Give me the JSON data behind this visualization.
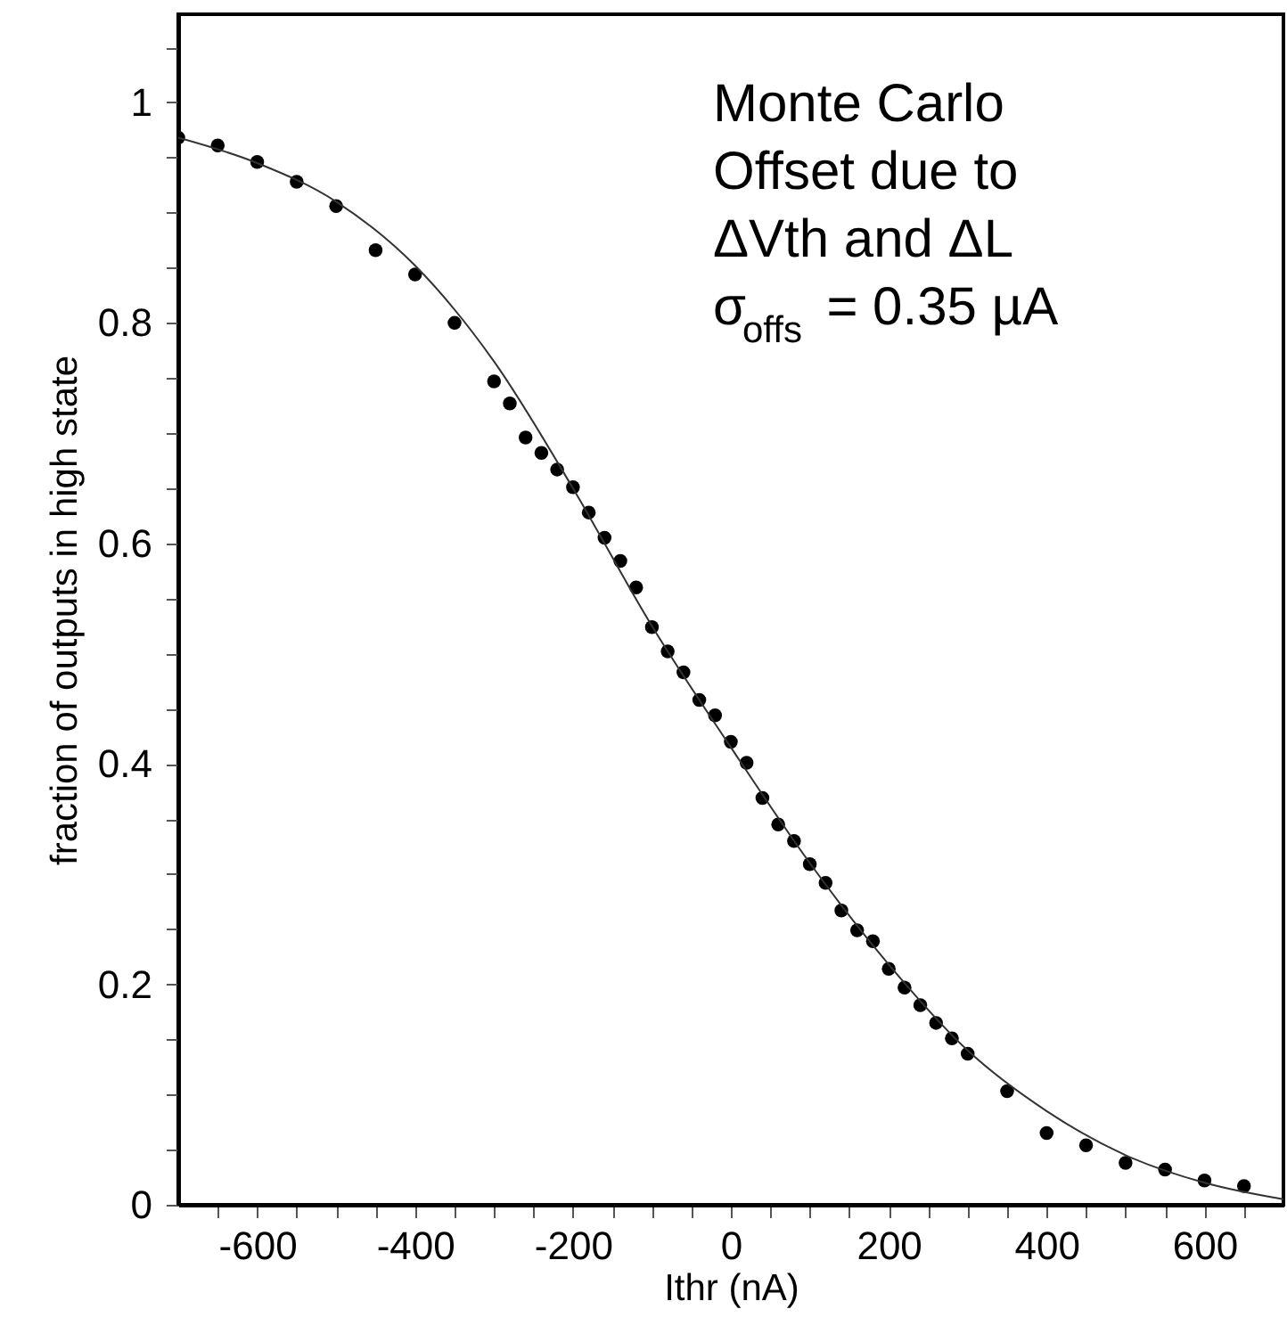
{
  "chart_data": {
    "type": "scatter",
    "xlabel": "Ithr (nA)",
    "ylabel": "fraction of outputs in high state",
    "annotations": [
      "Monte Carlo",
      "Offset due to",
      "ΔVth and ΔL",
      "σ$_{offs}$ = 0.35 µA"
    ],
    "xlim": [
      -700,
      700
    ],
    "ylim": [
      0,
      1.08
    ],
    "xticks": [
      {
        "value": -650,
        "label": null
      },
      -600,
      {
        "value": -550,
        "label": null
      },
      {
        "value": -500,
        "label": null
      },
      {
        "value": -450,
        "label": null
      },
      -400,
      {
        "value": -350,
        "label": null
      },
      {
        "value": -300,
        "label": null
      },
      {
        "value": -250,
        "label": null
      },
      -200,
      {
        "value": -150,
        "label": null
      },
      {
        "value": -100,
        "label": null
      },
      {
        "value": -50,
        "label": null
      },
      0,
      {
        "value": 50,
        "label": null
      },
      {
        "value": 100,
        "label": null
      },
      {
        "value": 150,
        "label": null
      },
      200,
      {
        "value": 250,
        "label": null
      },
      {
        "value": 300,
        "label": null
      },
      {
        "value": 350,
        "label": null
      },
      400,
      {
        "value": 450,
        "label": null
      },
      {
        "value": 500,
        "label": null
      },
      {
        "value": 550,
        "label": null
      },
      600,
      {
        "value": 650,
        "label": null
      }
    ],
    "yticks": [
      0,
      {
        "value": 0.05,
        "label": null
      },
      {
        "value": 0.1,
        "label": null
      },
      {
        "value": 0.15,
        "label": null
      },
      0.2,
      {
        "value": 0.25,
        "label": null
      },
      {
        "value": 0.3,
        "label": null
      },
      {
        "value": 0.35,
        "label": null
      },
      0.4,
      {
        "value": 0.45,
        "label": null
      },
      {
        "value": 0.5,
        "label": null
      },
      {
        "value": 0.55,
        "label": null
      },
      0.6,
      {
        "value": 0.65,
        "label": null
      },
      {
        "value": 0.7,
        "label": null
      },
      {
        "value": 0.75,
        "label": null
      },
      0.8,
      {
        "value": 0.85,
        "label": null
      },
      {
        "value": 0.9,
        "label": null
      },
      {
        "value": 0.95,
        "label": null
      },
      1,
      {
        "value": 1.05,
        "label": null
      }
    ],
    "grid": false,
    "series": [
      {
        "type": "scatter",
        "marker": "circle",
        "color": "#000000",
        "x": [
          -700,
          -650,
          -600,
          -550,
          -500,
          -450,
          -400,
          -350,
          -300,
          -280,
          -260,
          -240,
          -220,
          -200,
          -180,
          -160,
          -140,
          -120,
          -100,
          -80,
          -60,
          -40,
          -20,
          0,
          20,
          40,
          60,
          80,
          100,
          120,
          140,
          160,
          180,
          200,
          220,
          240,
          260,
          280,
          300,
          350,
          400,
          450,
          500,
          550,
          600,
          650
        ],
        "values": [
          0.968,
          0.961,
          0.946,
          0.928,
          0.906,
          0.866,
          0.844,
          0.8,
          0.747,
          0.727,
          0.696,
          0.682,
          0.667,
          0.651,
          0.628,
          0.605,
          0.584,
          0.56,
          0.524,
          0.502,
          0.483,
          0.458,
          0.444,
          0.42,
          0.401,
          0.369,
          0.345,
          0.33,
          0.309,
          0.292,
          0.267,
          0.249,
          0.239,
          0.214,
          0.197,
          0.181,
          0.165,
          0.151,
          0.137,
          0.103,
          0.065,
          0.054,
          0.038,
          0.032,
          0.022,
          0.017
        ]
      },
      {
        "type": "line",
        "marker": "none",
        "color": "#333333",
        "line_style": "solid",
        "x": [
          -700,
          -600,
          -500,
          -400,
          -300,
          -200,
          -100,
          0,
          100,
          200,
          300,
          400,
          500,
          600,
          700
        ],
        "values": [
          0.968,
          0.945,
          0.91,
          0.852,
          0.765,
          0.65,
          0.525,
          0.415,
          0.31,
          0.218,
          0.14,
          0.085,
          0.045,
          0.02,
          0.005
        ]
      }
    ]
  }
}
